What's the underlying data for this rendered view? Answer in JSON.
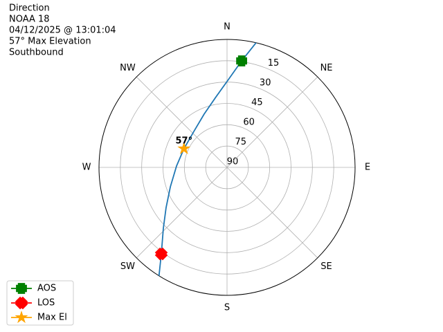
{
  "chart_data": {
    "type": "polar",
    "title": [
      "Direction",
      "NOAA 18",
      "04/12/2025 @ 13:01:04",
      "57° Max Elevation",
      "Southbound"
    ],
    "rlim": [
      90,
      0
    ],
    "rticks": [
      15,
      30,
      45,
      60,
      75,
      90
    ],
    "thetaticks": [
      {
        "value": 0,
        "label": "N"
      },
      {
        "value": 45,
        "label": "NE"
      },
      {
        "value": 90,
        "label": "E"
      },
      {
        "value": 135,
        "label": "SE"
      },
      {
        "value": 180,
        "label": "S"
      },
      {
        "value": 225,
        "label": "SW"
      },
      {
        "value": 270,
        "label": "W"
      },
      {
        "value": 315,
        "label": "NW"
      }
    ],
    "grid": true,
    "legend": "lower left",
    "track": {
      "color": "#1f77b4",
      "az": [
        13.1,
        7.8,
        0.9,
        351.1,
        336.8,
        317.3,
        293.5,
        271.6,
        251.1,
        236.6,
        226.3,
        217.2,
        212.1
      ],
      "el": [
        0,
        14.4,
        28.2,
        39.8,
        49.2,
        55.6,
        57,
        54.5,
        47.9,
        38.7,
        28.1,
        13.6,
        0
      ]
    },
    "series": [
      {
        "name": "AOS",
        "color": "#008000",
        "marker": "plus",
        "az": [
          7.8
        ],
        "el": [
          14.4
        ]
      },
      {
        "name": "LOS",
        "color": "#ff0000",
        "marker": "x",
        "az": [
          217.2
        ],
        "el": [
          13.6
        ]
      },
      {
        "name": "Max El",
        "color": "#ffa500",
        "marker": "star",
        "az": [
          293.5
        ],
        "el": [
          57
        ],
        "value_labels": [
          "57°"
        ]
      }
    ]
  }
}
